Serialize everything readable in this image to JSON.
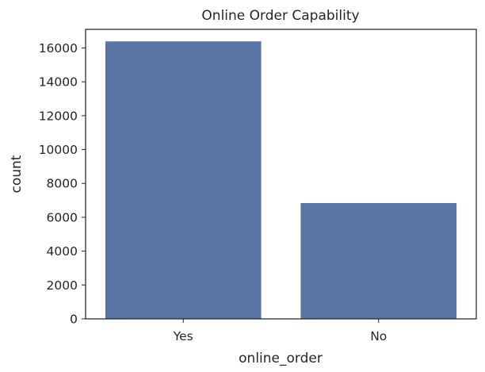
{
  "chart_data": {
    "type": "bar",
    "title": "Online Order Capability",
    "xlabel": "online_order",
    "ylabel": "count",
    "categories": [
      "Yes",
      "No"
    ],
    "values": [
      16400,
      6850
    ],
    "ylim": [
      0,
      17100
    ],
    "yticks": [
      0,
      2000,
      4000,
      6000,
      8000,
      10000,
      12000,
      14000,
      16000
    ],
    "ytick_labels": [
      "0",
      "2000",
      "4000",
      "6000",
      "8000",
      "10000",
      "12000",
      "14000",
      "16000"
    ],
    "bar_color": "#5975a4",
    "grid": false,
    "legend": "none"
  }
}
